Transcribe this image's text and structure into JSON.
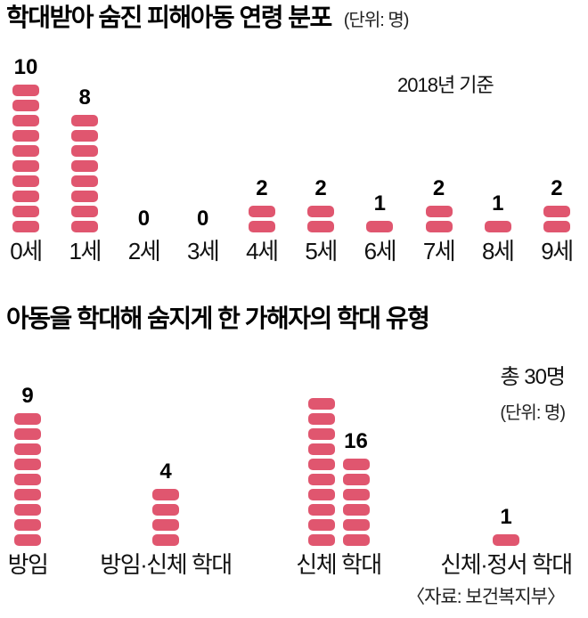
{
  "page": {
    "background": "#ffffff",
    "accent_color": "#e0566f",
    "text_color": "#111111"
  },
  "chart_data": [
    {
      "type": "bar",
      "style": "pictogram-stack",
      "title": "학대받아 숨진 피해아동 연령 분포",
      "unit_label": "(단위: 명)",
      "note": "2018년 기준",
      "categories": [
        "0세",
        "1세",
        "2세",
        "3세",
        "4세",
        "5세",
        "6세",
        "7세",
        "8세",
        "9세"
      ],
      "values": [
        10,
        8,
        0,
        0,
        2,
        2,
        1,
        2,
        1,
        2
      ],
      "xlabel": "",
      "ylabel": "",
      "legend": "none",
      "block_unit": 1,
      "block_color": "#e0566f"
    },
    {
      "type": "bar",
      "style": "pictogram-stack",
      "title": "아동을 학대해 숨지게 한 가해자의 학대 유형",
      "total_label": "총 30명",
      "unit_label": "(단위: 명)",
      "source": "〈자료: 보건복지부〉",
      "categories": [
        "방임",
        "방임·신체 학대",
        "신체 학대",
        "신체·정서 학대"
      ],
      "values": [
        9,
        4,
        16,
        1
      ],
      "stacks": [
        [
          9
        ],
        [
          4
        ],
        [
          10,
          6
        ],
        [
          1
        ]
      ],
      "xlabel": "",
      "ylabel": "",
      "legend": "none",
      "block_unit": 1,
      "block_color": "#e0566f"
    }
  ]
}
